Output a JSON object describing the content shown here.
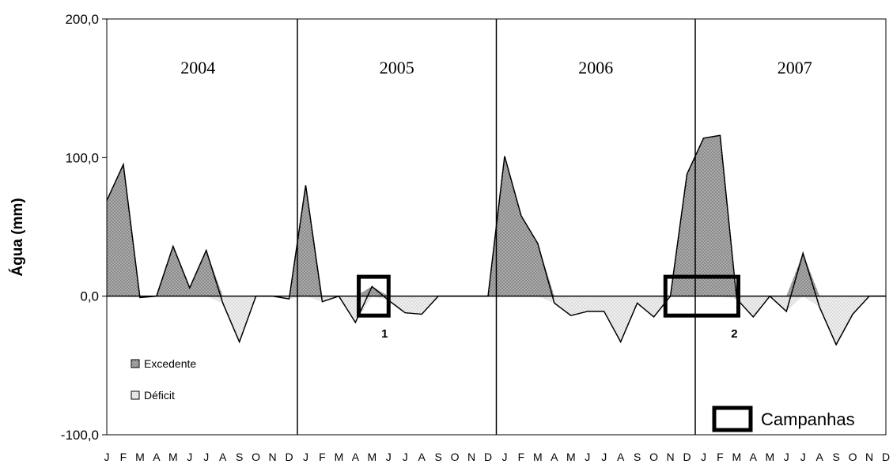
{
  "chart_data": {
    "type": "area",
    "ylabel": "Água (mm)",
    "ylim": [
      -100,
      200
    ],
    "yticks": [
      "-100,0",
      "0,0",
      "100,0",
      "200,0"
    ],
    "ytick_values": [
      -100,
      0,
      100,
      200
    ],
    "grid": false,
    "years": [
      "2004",
      "2005",
      "2006",
      "2007"
    ],
    "month_labels": [
      "J",
      "F",
      "M",
      "A",
      "M",
      "J",
      "J",
      "A",
      "S",
      "O",
      "N",
      "D"
    ],
    "series": [
      {
        "name": "Excedente",
        "color": "#8c8c8c",
        "values": [
          69,
          95,
          0,
          0,
          36,
          6,
          33,
          0,
          0,
          0,
          0,
          0,
          80,
          0,
          0,
          0,
          7,
          0,
          0,
          0,
          0,
          0,
          0,
          0,
          101,
          58,
          38,
          0,
          0,
          0,
          0,
          0,
          0,
          0,
          0,
          88,
          114,
          116,
          0,
          0,
          0,
          0,
          31,
          0,
          0,
          0,
          0,
          0
        ]
      },
      {
        "name": "Déficit",
        "color": "#e0e0e0",
        "values": [
          0,
          0,
          -1,
          0,
          0,
          0,
          0,
          -5,
          -33,
          0,
          0,
          -2,
          0,
          -4,
          0,
          -19,
          0,
          -3,
          -12,
          -13,
          0,
          0,
          0,
          0,
          0,
          0,
          0,
          -5,
          -14,
          -11,
          -11,
          -33,
          -5,
          -15,
          0,
          0,
          0,
          0,
          -2,
          -15,
          0,
          -11,
          0,
          -8,
          -35,
          -13,
          0,
          0
        ]
      }
    ],
    "legend": {
      "position": "bottom-left",
      "items": [
        "Excedente",
        "Déficit"
      ]
    },
    "campanhas": {
      "label": "Campanhas",
      "markers": [
        {
          "label": "1",
          "start_month": 15.2,
          "end_month": 17.0,
          "y_top": 14,
          "y_bottom": -14
        },
        {
          "label": "2",
          "start_month": 33.7,
          "end_month": 38.1,
          "y_top": 14,
          "y_bottom": -14
        }
      ]
    }
  }
}
